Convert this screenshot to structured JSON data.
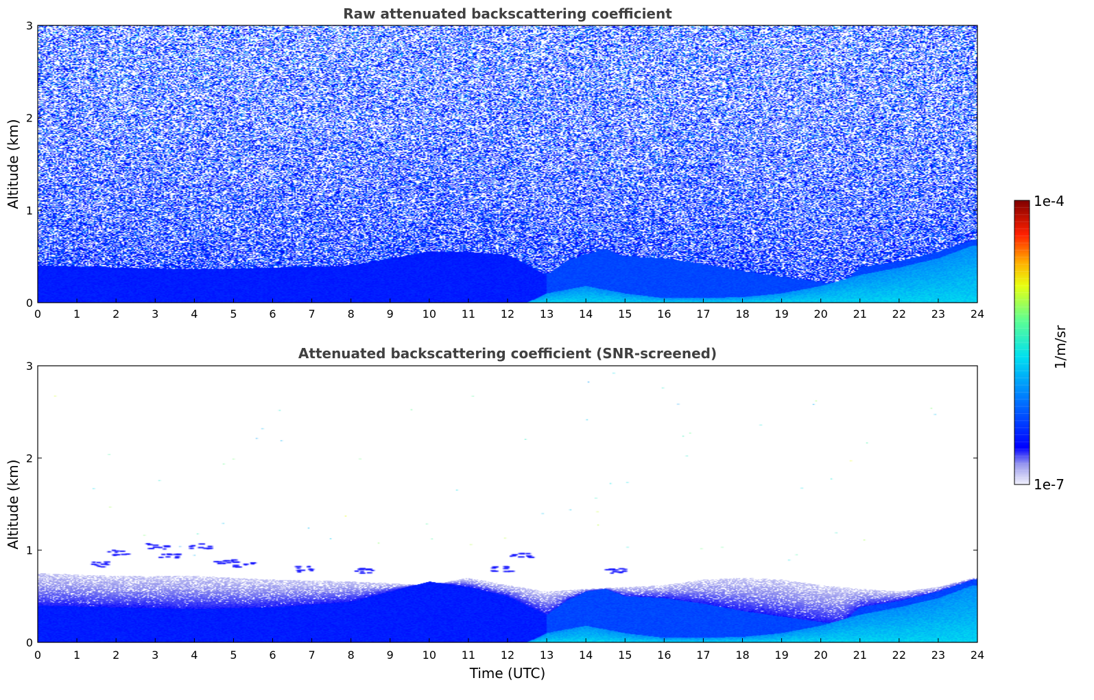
{
  "chart_data": [
    {
      "id": "raw",
      "type": "heatmap",
      "title": "Raw attenuated backscattering coefficient",
      "xlabel": "",
      "ylabel": "Altitude (km)",
      "xlim": [
        0,
        24
      ],
      "ylim": [
        0,
        3
      ],
      "xticks": [
        "0",
        "1",
        "2",
        "3",
        "4",
        "5",
        "6",
        "7",
        "8",
        "9",
        "10",
        "11",
        "12",
        "13",
        "14",
        "15",
        "16",
        "17",
        "18",
        "19",
        "20",
        "21",
        "22",
        "23",
        "24"
      ],
      "yticks": [
        "0",
        "1",
        "2",
        "3"
      ],
      "screened": false,
      "noise_decay_km": 0.9,
      "boundary_layer_top_km": {
        "time_utc": [
          0,
          2,
          4,
          6,
          8,
          9,
          10,
          11,
          12,
          13,
          13.5,
          14,
          14.5,
          15,
          16,
          17,
          18,
          19,
          20,
          20.5,
          21,
          22,
          23,
          23.9
        ],
        "height": [
          0.4,
          0.38,
          0.36,
          0.38,
          0.4,
          0.48,
          0.55,
          0.55,
          0.52,
          0.3,
          0.45,
          0.52,
          0.58,
          0.5,
          0.48,
          0.42,
          0.34,
          0.28,
          0.22,
          0.2,
          0.38,
          0.45,
          0.55,
          0.68
        ]
      },
      "surface_layer_top_km": {
        "time_utc": [
          0,
          12.5,
          13,
          14,
          15,
          16,
          17,
          18,
          19,
          20,
          21,
          22,
          23,
          23.9
        ],
        "height": [
          0.0,
          0.0,
          0.1,
          0.18,
          0.1,
          0.05,
          0.05,
          0.06,
          0.1,
          0.18,
          0.3,
          0.38,
          0.48,
          0.62
        ]
      }
    },
    {
      "id": "screened",
      "type": "heatmap",
      "title": "Attenuated backscattering coefficient (SNR-screened)",
      "xlabel": "Time (UTC)",
      "ylabel": "Altitude (km)",
      "xlim": [
        0,
        24
      ],
      "ylim": [
        0,
        3
      ],
      "xticks": [
        "0",
        "1",
        "2",
        "3",
        "4",
        "5",
        "6",
        "7",
        "8",
        "9",
        "10",
        "11",
        "12",
        "13",
        "14",
        "15",
        "16",
        "17",
        "18",
        "19",
        "20",
        "21",
        "22",
        "23",
        "24"
      ],
      "yticks": [
        "0",
        "1",
        "2",
        "3"
      ],
      "screened": true,
      "residual_layer_top_km": {
        "time_utc": [
          0,
          2,
          4,
          6,
          8,
          10,
          11,
          12,
          13,
          14,
          15,
          16,
          17,
          18,
          19,
          20,
          21,
          22,
          23,
          23.9
        ],
        "height": [
          0.75,
          0.72,
          0.72,
          0.68,
          0.66,
          0.62,
          0.7,
          0.62,
          0.55,
          0.58,
          0.6,
          0.62,
          0.68,
          0.7,
          0.68,
          0.62,
          0.58,
          0.55,
          0.6,
          0.7
        ]
      },
      "boundary_layer_top_km": {
        "time_utc": [
          0,
          2,
          4,
          6,
          8,
          9,
          10,
          11,
          12,
          13,
          13.5,
          14,
          14.5,
          15,
          16,
          17,
          18,
          19,
          20,
          20.5,
          21,
          22,
          23,
          23.9
        ],
        "height": [
          0.4,
          0.38,
          0.36,
          0.38,
          0.44,
          0.55,
          0.66,
          0.6,
          0.5,
          0.3,
          0.45,
          0.55,
          0.58,
          0.5,
          0.48,
          0.42,
          0.34,
          0.28,
          0.22,
          0.2,
          0.38,
          0.45,
          0.55,
          0.68
        ]
      },
      "surface_layer_top_km": {
        "time_utc": [
          0,
          12.5,
          13,
          14,
          15,
          16,
          17,
          18,
          19,
          20,
          21,
          22,
          23,
          23.9
        ],
        "height": [
          0.0,
          0.0,
          0.1,
          0.18,
          0.1,
          0.05,
          0.05,
          0.06,
          0.1,
          0.18,
          0.3,
          0.38,
          0.48,
          0.62
        ]
      },
      "cloud_patches": [
        {
          "t": 1.6,
          "z": 0.85
        },
        {
          "t": 2.0,
          "z": 0.98
        },
        {
          "t": 3.0,
          "z": 1.05
        },
        {
          "t": 3.3,
          "z": 0.95
        },
        {
          "t": 4.1,
          "z": 1.05
        },
        {
          "t": 4.7,
          "z": 0.88
        },
        {
          "t": 5.2,
          "z": 0.85
        },
        {
          "t": 6.8,
          "z": 0.8
        },
        {
          "t": 8.3,
          "z": 0.78
        },
        {
          "t": 11.8,
          "z": 0.8
        },
        {
          "t": 12.3,
          "z": 0.95
        },
        {
          "t": 14.7,
          "z": 0.78
        }
      ]
    }
  ],
  "colorbar": {
    "label": "1/m/sr",
    "min_label": "1e-7",
    "max_label": "1e-4",
    "min": 1e-07,
    "max": 0.0001,
    "scale": "log",
    "colormap": "jet",
    "low_end_colors": [
      "#f0f0fc",
      "#d4d4f6",
      "#b8b8f0",
      "#9c9cec",
      "#7a7aee"
    ]
  }
}
